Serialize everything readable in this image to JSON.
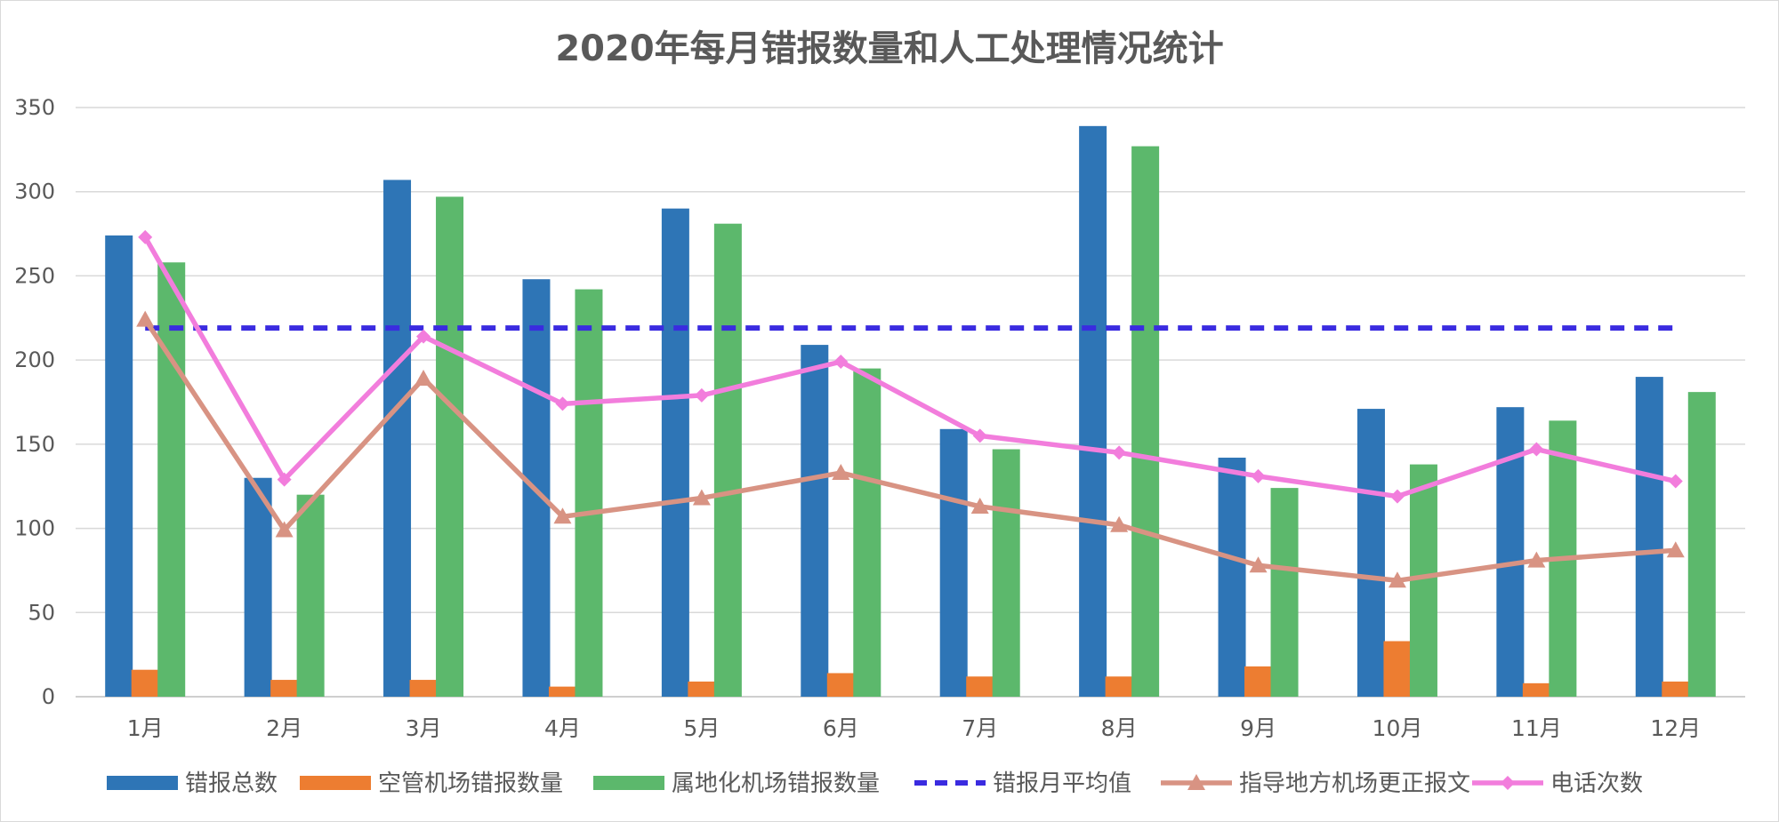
{
  "chart_data": {
    "type": "bar+line",
    "title": "2020年每月错报数量和人工处理情况统计",
    "categories": [
      "1月",
      "2月",
      "3月",
      "4月",
      "5月",
      "6月",
      "7月",
      "8月",
      "9月",
      "10月",
      "11月",
      "12月"
    ],
    "ylim": [
      0,
      350
    ],
    "yticks": [
      0,
      50,
      100,
      150,
      200,
      250,
      300,
      350
    ],
    "grid": true,
    "legend_position": "bottom",
    "series": [
      {
        "name": "错报总数",
        "kind": "bar",
        "color": "#2e75b6",
        "values": [
          274,
          130,
          307,
          248,
          290,
          209,
          159,
          339,
          142,
          171,
          172,
          190
        ]
      },
      {
        "name": "空管机场错报数量",
        "kind": "bar",
        "color": "#ed7d31",
        "values": [
          16,
          10,
          10,
          6,
          9,
          14,
          12,
          12,
          18,
          33,
          8,
          9
        ]
      },
      {
        "name": "属地化机场错报数量",
        "kind": "bar",
        "color": "#5cb86c",
        "values": [
          258,
          120,
          297,
          242,
          281,
          195,
          147,
          327,
          124,
          138,
          164,
          181
        ]
      },
      {
        "name": "错报月平均值",
        "kind": "dashed-line",
        "color": "#3a2be0",
        "values": [
          219,
          219,
          219,
          219,
          219,
          219,
          219,
          219,
          219,
          219,
          219,
          219
        ]
      },
      {
        "name": "指导地方机场更正报文",
        "kind": "line-triangle",
        "color": "#d89383",
        "values": [
          224,
          99,
          189,
          107,
          118,
          133,
          113,
          102,
          78,
          69,
          81,
          87
        ]
      },
      {
        "name": "电话次数",
        "kind": "line-diamond",
        "color": "#f27ddc",
        "values": [
          273,
          129,
          214,
          174,
          179,
          199,
          155,
          145,
          131,
          119,
          147,
          128
        ]
      }
    ]
  }
}
